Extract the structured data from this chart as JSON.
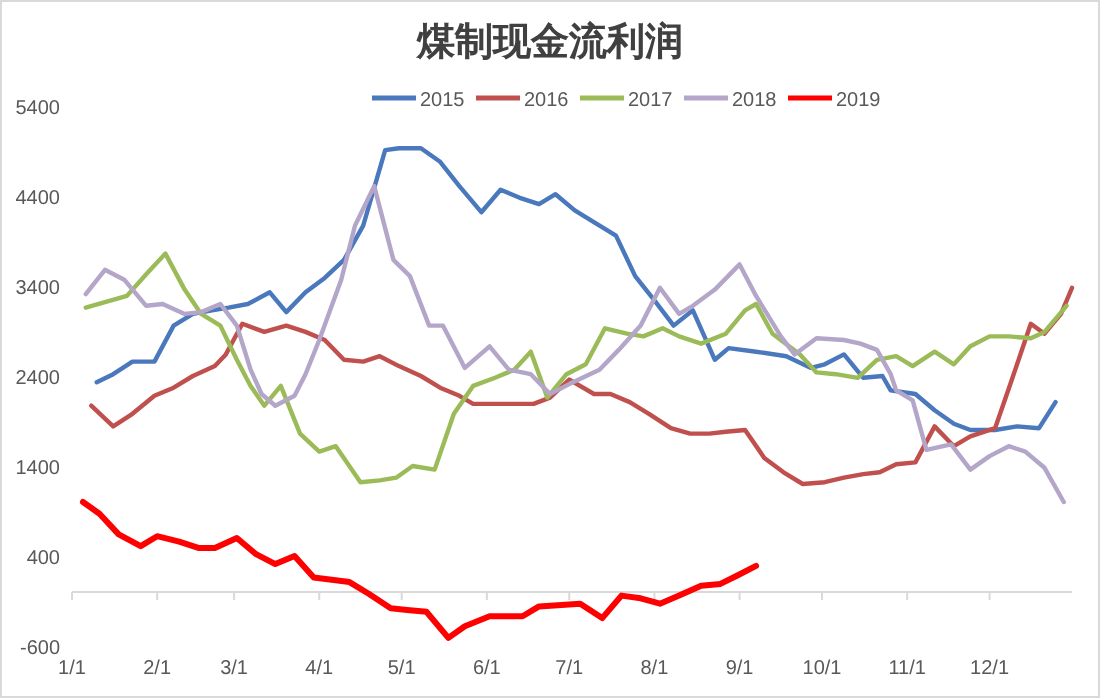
{
  "chart_data": {
    "type": "line",
    "title": "煤制现金流利润",
    "legend": "top",
    "xlim": [
      "--01-01",
      "--12-31"
    ],
    "ylim": [
      -600,
      5400
    ],
    "yticks": [
      -600,
      400,
      1400,
      2400,
      3400,
      4400,
      5400
    ],
    "xticks": [
      {
        "value": "--01-01",
        "label": "1/1"
      },
      {
        "value": "--02-01",
        "label": "2/1"
      },
      {
        "value": "--03-01",
        "label": "3/1"
      },
      {
        "value": "--04-01",
        "label": "4/1"
      },
      {
        "value": "--05-01",
        "label": "5/1"
      },
      {
        "value": "--06-01",
        "label": "6/1"
      },
      {
        "value": "--07-01",
        "label": "7/1"
      },
      {
        "value": "--08-01",
        "label": "8/1"
      },
      {
        "value": "--09-01",
        "label": "9/1"
      },
      {
        "value": "--10-01",
        "label": "10/1"
      },
      {
        "value": "--11-01",
        "label": "11/1"
      },
      {
        "value": "--12-01",
        "label": "12/1"
      }
    ],
    "series": [
      {
        "name": "2015",
        "color": "#4a78bd",
        "x": [
          "--01-10",
          "--01-16",
          "--01-23",
          "--01-31",
          "--02-07",
          "--02-14",
          "--02-21",
          "--02-27",
          "--03-06",
          "--03-14",
          "--03-20",
          "--03-27",
          "--04-03",
          "--04-10",
          "--04-17",
          "--04-25",
          "--04-30",
          "--05-08",
          "--05-15",
          "--05-22",
          "--05-30",
          "--06-06",
          "--06-13",
          "--06-20",
          "--06-26",
          "--07-03",
          "--07-11",
          "--07-18",
          "--07-25",
          "--08-01",
          "--08-08",
          "--08-15",
          "--08-23",
          "--08-28",
          "--09-07",
          "--09-18",
          "--09-27",
          "--10-02",
          "--10-09",
          "--10-16",
          "--10-23",
          "--10-26",
          "--11-04",
          "--11-11",
          "--11-18",
          "--11-24",
          "--12-03",
          "--12-11",
          "--12-19",
          "--12-25"
        ],
        "values": [
          2330,
          2420,
          2560,
          2560,
          2960,
          3090,
          3130,
          3160,
          3200,
          3330,
          3110,
          3330,
          3490,
          3690,
          4070,
          4910,
          4930,
          4930,
          4780,
          4510,
          4220,
          4470,
          4380,
          4310,
          4420,
          4240,
          4090,
          3960,
          3510,
          3240,
          2960,
          3130,
          2580,
          2710,
          2670,
          2620,
          2490,
          2530,
          2640,
          2380,
          2400,
          2240,
          2200,
          2020,
          1870,
          1800,
          1800,
          1840,
          1820,
          2110
        ]
      },
      {
        "name": "2016",
        "color": "#c0504d",
        "x": [
          "--01-08",
          "--01-16",
          "--01-23",
          "--01-31",
          "--02-07",
          "--02-14",
          "--02-22",
          "--02-26",
          "--03-04",
          "--03-12",
          "--03-20",
          "--03-27",
          "--04-03",
          "--04-10",
          "--04-17",
          "--04-23",
          "--04-30",
          "--05-08",
          "--05-15",
          "--05-22",
          "--05-27",
          "--06-04",
          "--06-11",
          "--06-18",
          "--06-24",
          "--07-01",
          "--07-10",
          "--07-16",
          "--07-23",
          "--07-30",
          "--08-07",
          "--08-14",
          "--08-21",
          "--08-27",
          "--09-03",
          "--09-10",
          "--09-17",
          "--09-24",
          "--10-02",
          "--10-09",
          "--10-16",
          "--10-22",
          "--10-28",
          "--11-04",
          "--11-11",
          "--11-18",
          "--11-24",
          "--12-03",
          "--12-09",
          "--12-16",
          "--12-21",
          "--12-27",
          "--12-31"
        ],
        "values": [
          2070,
          1840,
          1980,
          2180,
          2270,
          2400,
          2510,
          2640,
          2980,
          2890,
          2960,
          2890,
          2800,
          2580,
          2560,
          2620,
          2510,
          2400,
          2270,
          2180,
          2090,
          2090,
          2090,
          2090,
          2160,
          2360,
          2200,
          2200,
          2110,
          1980,
          1820,
          1760,
          1760,
          1780,
          1800,
          1490,
          1330,
          1200,
          1220,
          1270,
          1310,
          1330,
          1420,
          1440,
          1840,
          1620,
          1730,
          1820,
          2350,
          2980,
          2870,
          3090,
          3380
        ]
      },
      {
        "name": "2017",
        "color": "#9bbb59",
        "x": [
          "--01-06",
          "--01-13",
          "--01-21",
          "--01-28",
          "--02-04",
          "--02-11",
          "--02-17",
          "--02-24",
          "--03-02",
          "--03-07",
          "--03-12",
          "--03-18",
          "--03-25",
          "--04-01",
          "--04-07",
          "--04-16",
          "--04-23",
          "--04-29",
          "--05-05",
          "--05-13",
          "--05-20",
          "--05-27",
          "--06-04",
          "--06-11",
          "--06-17",
          "--06-23",
          "--06-30",
          "--07-07",
          "--07-14",
          "--07-22",
          "--07-28",
          "--08-04",
          "--08-10",
          "--08-18",
          "--08-27",
          "--09-03",
          "--09-07",
          "--09-13",
          "--09-23",
          "--09-29",
          "--10-06",
          "--10-14",
          "--10-21",
          "--10-28",
          "--11-03",
          "--11-11",
          "--11-18",
          "--11-24",
          "--12-01",
          "--12-08",
          "--12-16",
          "--12-21",
          "--12-29"
        ],
        "values": [
          3160,
          3220,
          3290,
          3530,
          3760,
          3360,
          3090,
          2960,
          2580,
          2290,
          2070,
          2290,
          1760,
          1560,
          1620,
          1220,
          1240,
          1270,
          1400,
          1360,
          1980,
          2290,
          2380,
          2470,
          2670,
          2160,
          2420,
          2530,
          2930,
          2870,
          2840,
          2930,
          2840,
          2760,
          2870,
          3130,
          3200,
          2870,
          2640,
          2440,
          2420,
          2380,
          2580,
          2620,
          2510,
          2670,
          2530,
          2730,
          2840,
          2840,
          2820,
          2890,
          3180
        ]
      },
      {
        "name": "2018",
        "color": "#b3a6c9",
        "x": [
          "--01-06",
          "--01-13",
          "--01-20",
          "--01-28",
          "--02-03",
          "--02-11",
          "--02-17",
          "--02-24",
          "--03-02",
          "--03-07",
          "--03-11",
          "--03-16",
          "--03-23",
          "--03-27",
          "--04-01",
          "--04-09",
          "--04-14",
          "--04-21",
          "--04-28",
          "--05-04",
          "--05-11",
          "--05-16",
          "--05-24",
          "--06-02",
          "--06-09",
          "--06-17",
          "--06-24",
          "--07-01",
          "--07-12",
          "--07-19",
          "--07-27",
          "--08-03",
          "--08-10",
          "--08-15",
          "--08-23",
          "--09-01",
          "--09-07",
          "--09-16",
          "--09-21",
          "--09-29",
          "--10-09",
          "--10-15",
          "--10-21",
          "--10-26",
          "--10-28",
          "--11-03",
          "--11-08",
          "--11-17",
          "--11-24",
          "--12-01",
          "--12-08",
          "--12-14",
          "--12-21",
          "--12-28"
        ],
        "values": [
          3310,
          3580,
          3470,
          3180,
          3200,
          3090,
          3110,
          3200,
          2960,
          2470,
          2200,
          2070,
          2180,
          2420,
          2800,
          3470,
          4070,
          4510,
          3690,
          3510,
          2960,
          2960,
          2490,
          2730,
          2470,
          2420,
          2200,
          2310,
          2470,
          2690,
          2960,
          3380,
          3090,
          3180,
          3360,
          3640,
          3290,
          2840,
          2640,
          2820,
          2800,
          2760,
          2690,
          2420,
          2240,
          2130,
          1580,
          1640,
          1360,
          1510,
          1620,
          1560,
          1380,
          1000
        ]
      },
      {
        "name": "2019",
        "color": "#ff0000",
        "x": [
          "--01-05",
          "--01-11",
          "--01-18",
          "--01-26",
          "--02-01",
          "--02-09",
          "--02-16",
          "--02-22",
          "--03-02",
          "--03-09",
          "--03-16",
          "--03-23",
          "--03-30",
          "--04-12",
          "--04-19",
          "--04-27",
          "--05-03",
          "--05-10",
          "--05-18",
          "--05-24",
          "--06-02",
          "--06-14",
          "--06-20",
          "--07-05",
          "--07-13",
          "--07-20",
          "--07-27",
          "--08-03",
          "--08-10",
          "--08-18",
          "--08-25",
          "--08-31",
          "--09-07"
        ],
        "values": [
          1000,
          870,
          640,
          510,
          620,
          560,
          490,
          490,
          600,
          420,
          310,
          400,
          160,
          110,
          -20,
          -180,
          -200,
          -220,
          -510,
          -380,
          -270,
          -270,
          -160,
          -130,
          -290,
          -40,
          -70,
          -130,
          -40,
          70,
          90,
          180,
          290
        ]
      }
    ]
  }
}
